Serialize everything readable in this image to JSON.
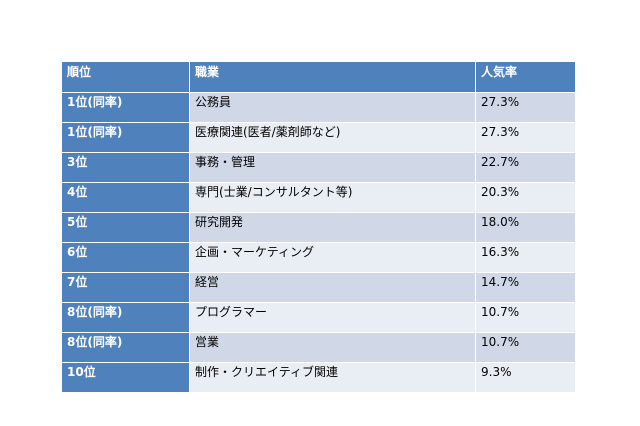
{
  "table": {
    "headers": {
      "rank": "順位",
      "job": "職業",
      "popularity": "人気率"
    },
    "rows": [
      {
        "rank": "1位(同率)",
        "job": "公務員",
        "popularity": "27.3%"
      },
      {
        "rank": "1位(同率)",
        "job": "医療関連(医者/薬剤師など)",
        "popularity": "27.3%"
      },
      {
        "rank": "3位",
        "job": "事務・管理",
        "popularity": "22.7%"
      },
      {
        "rank": "4位",
        "job": "専門(士業/コンサルタント等)",
        "popularity": "20.3%"
      },
      {
        "rank": "5位",
        "job": "研究開発",
        "popularity": "18.0%"
      },
      {
        "rank": "6位",
        "job": "企画・マーケティング",
        "popularity": "16.3%"
      },
      {
        "rank": "7位",
        "job": "経営",
        "popularity": "14.7%"
      },
      {
        "rank": "8位(同率)",
        "job": "プログラマー",
        "popularity": "10.7%"
      },
      {
        "rank": "8位(同率)",
        "job": "営業",
        "popularity": "10.7%"
      },
      {
        "rank": "10位",
        "job": "制作・クリエイティブ関連",
        "popularity": "9.3%"
      }
    ]
  },
  "colors": {
    "header_background": "#4f81bd",
    "header_text": "#ffffff",
    "row_band_dark": "#d0d8e8",
    "row_band_light": "#e9edf4"
  }
}
